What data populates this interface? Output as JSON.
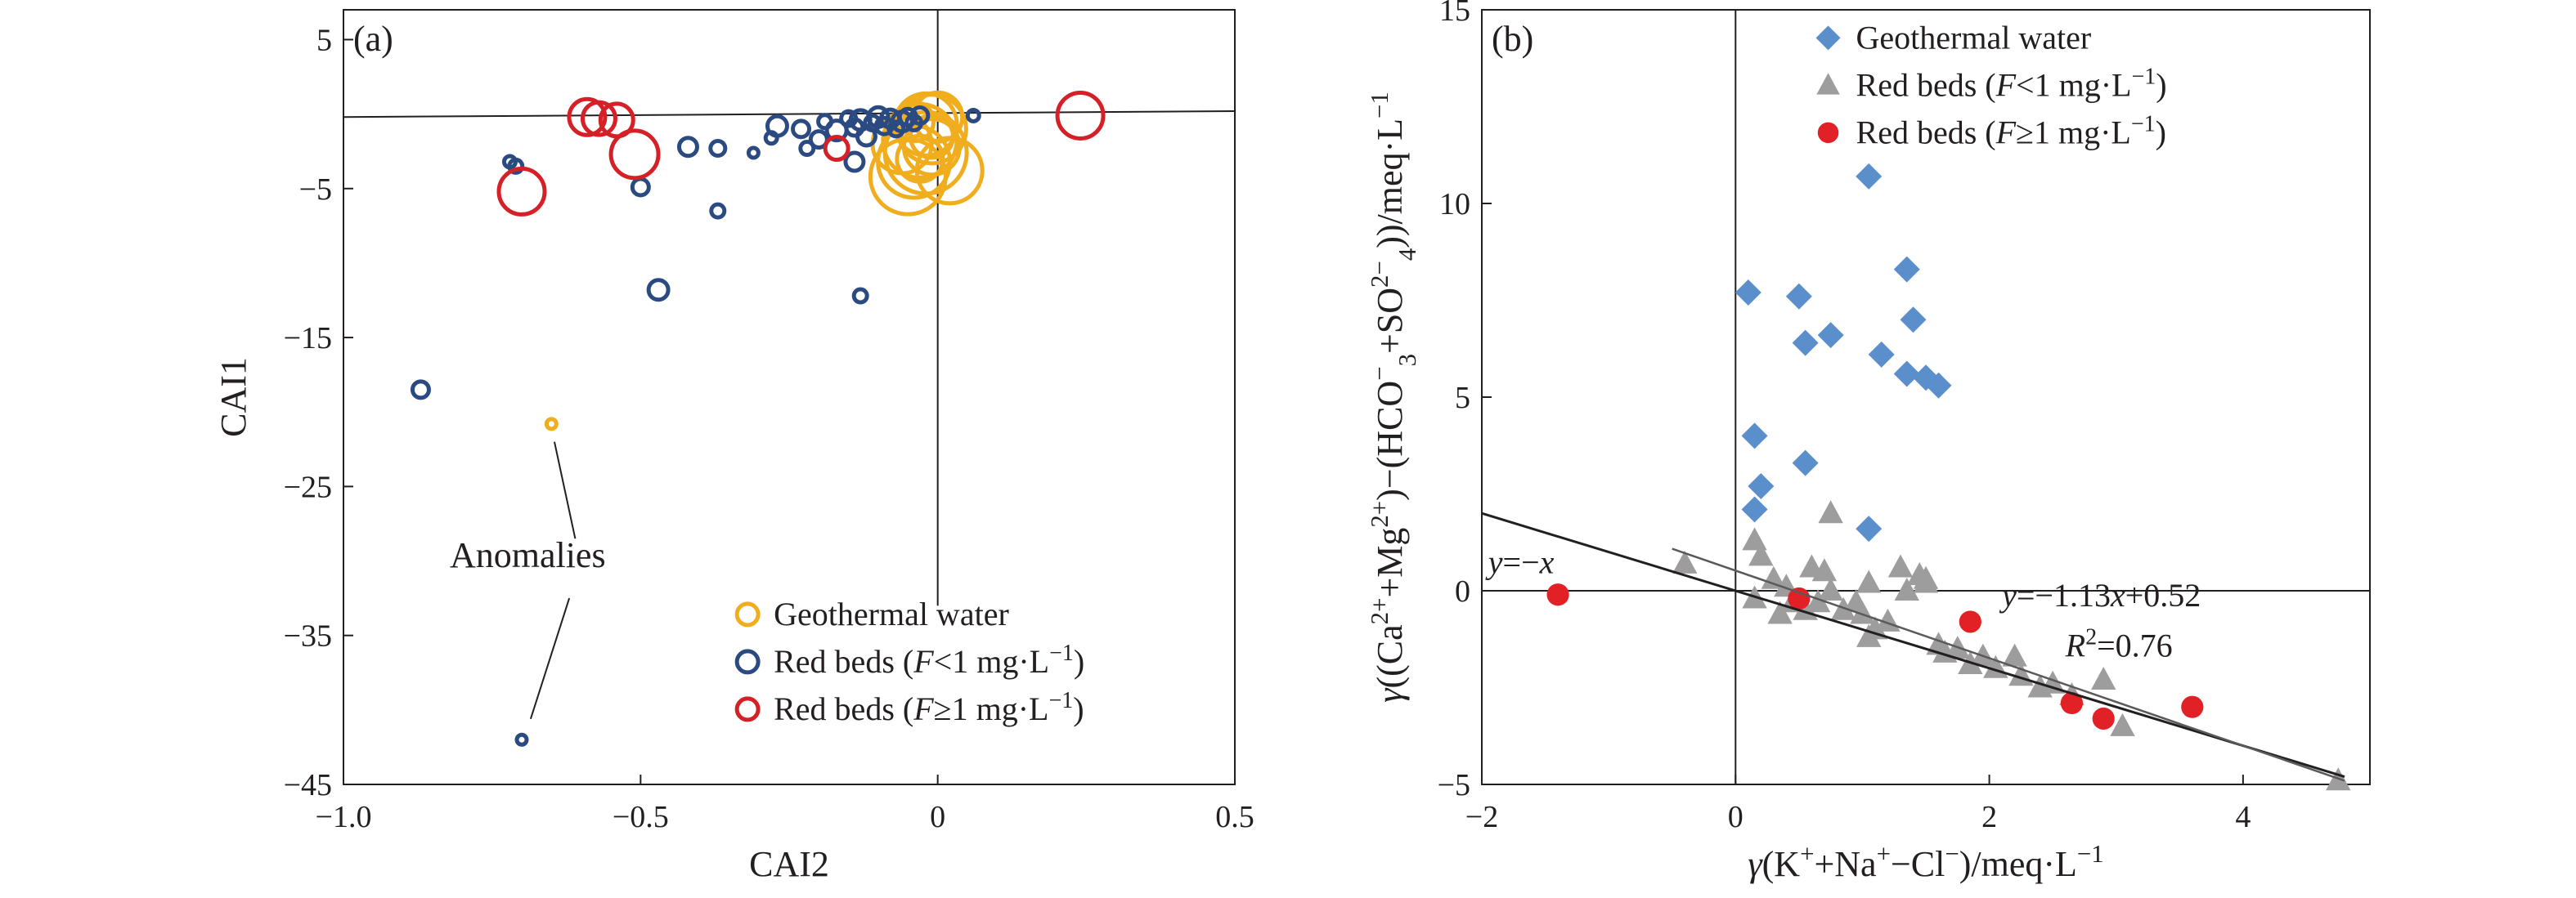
{
  "chart_data": [
    {
      "type": "scatter",
      "panel_label": "(a)",
      "xlabel": "CAI2",
      "ylabel": "CAI1",
      "xlim": [
        -1.0,
        0.5
      ],
      "ylim": [
        -45,
        7
      ],
      "xticks": [
        -1.0,
        -0.5,
        0,
        0.5
      ],
      "xtick_labels": [
        "−1.0",
        "−0.5",
        "0",
        "0.5"
      ],
      "yticks": [
        5,
        -5,
        -15,
        -25,
        -35,
        -45
      ],
      "ytick_labels": [
        "5",
        "−5",
        "−15",
        "−25",
        "−35",
        "−45"
      ],
      "grid": false,
      "legend_position": "bottom-right",
      "annotation": "Anomalies",
      "series": [
        {
          "name": "Geothermal water",
          "color": "#f0ad1e",
          "marker": "open-circle",
          "points": [
            [
              -0.65,
              -20.8,
              6
            ],
            [
              -0.01,
              -1.0,
              42
            ],
            [
              -0.03,
              -1.8,
              45
            ],
            [
              -0.02,
              -2.6,
              50
            ],
            [
              -0.04,
              -3.2,
              44
            ],
            [
              -0.05,
              -4.2,
              46
            ],
            [
              0.02,
              -3.8,
              40
            ],
            [
              -0.01,
              -2.2,
              34
            ],
            [
              -0.02,
              -0.7,
              38
            ],
            [
              0.0,
              -0.2,
              30
            ],
            [
              -0.03,
              -3.0,
              28
            ],
            [
              -0.06,
              -2.0,
              36
            ],
            [
              -0.01,
              -1.5,
              26
            ],
            [
              -0.04,
              -0.5,
              24
            ]
          ]
        },
        {
          "name": "Red beds (F<1 mg·L⁻¹)",
          "name_parts": [
            "Red beds (",
            "F",
            "<1 mg·L",
            "−1",
            ")"
          ],
          "color": "#2b4a82",
          "marker": "open-circle",
          "points": [
            [
              -0.87,
              -18.5,
              10
            ],
            [
              -0.7,
              -42.0,
              6
            ],
            [
              -0.72,
              -3.2,
              7
            ],
            [
              -0.71,
              -3.5,
              8
            ],
            [
              -0.5,
              -4.9,
              10
            ],
            [
              -0.47,
              -11.8,
              12
            ],
            [
              -0.42,
              -2.2,
              11
            ],
            [
              -0.37,
              -2.3,
              9
            ],
            [
              -0.37,
              -6.5,
              8
            ],
            [
              -0.31,
              -2.6,
              6
            ],
            [
              -0.28,
              -1.6,
              7
            ],
            [
              -0.27,
              -0.8,
              12
            ],
            [
              -0.23,
              -1.0,
              10
            ],
            [
              -0.22,
              -2.3,
              8
            ],
            [
              -0.2,
              -1.7,
              10
            ],
            [
              -0.19,
              -0.5,
              8
            ],
            [
              -0.17,
              -1.1,
              12
            ],
            [
              -0.15,
              -0.3,
              9
            ],
            [
              -0.14,
              -0.9,
              10
            ],
            [
              -0.13,
              -0.4,
              12
            ],
            [
              -0.12,
              -1.5,
              11
            ],
            [
              -0.11,
              -0.6,
              9
            ],
            [
              -0.1,
              -0.2,
              12
            ],
            [
              -0.09,
              -0.8,
              10
            ],
            [
              -0.08,
              -0.3,
              11
            ],
            [
              -0.07,
              -1.0,
              9
            ],
            [
              -0.06,
              -0.5,
              12
            ],
            [
              -0.05,
              -0.2,
              10
            ],
            [
              -0.04,
              -0.6,
              9
            ],
            [
              -0.03,
              -0.1,
              10
            ],
            [
              -0.13,
              -12.2,
              8
            ],
            [
              -0.14,
              -3.2,
              11
            ],
            [
              0.06,
              -0.1,
              7
            ]
          ]
        },
        {
          "name": "Red beds (F≥1 mg·L⁻¹)",
          "name_parts": [
            "Red beds (",
            "F",
            "≥1 mg·L",
            "−1",
            ")"
          ],
          "color": "#d62027",
          "marker": "open-circle",
          "points": [
            [
              -0.7,
              -5.2,
              28
            ],
            [
              -0.57,
              -0.3,
              20
            ],
            [
              -0.54,
              -0.4,
              20
            ],
            [
              -0.59,
              -0.2,
              22
            ],
            [
              -0.51,
              -2.7,
              29
            ],
            [
              -0.17,
              -2.3,
              14
            ],
            [
              0.24,
              -0.1,
              28
            ]
          ]
        }
      ],
      "reference_lines": [
        {
          "kind": "horizontal",
          "y_from": -0.2,
          "y_to": 0.2,
          "x": [
            -1.0,
            0.5
          ]
        },
        {
          "kind": "vertical",
          "x": 0,
          "y": [
            -33,
            7
          ]
        }
      ]
    },
    {
      "type": "scatter",
      "panel_label": "(b)",
      "xlabel_parts": [
        "γ",
        "(K",
        "+",
        "+Na",
        "+",
        "−Cl",
        "−",
        ")/meq·L",
        "−1"
      ],
      "ylabel_parts": [
        "γ",
        "((Ca",
        "2+",
        "+Mg",
        "2+",
        ")−(HCO",
        "−",
        "3",
        "+SO",
        "2−",
        "4",
        "))/meq·L",
        "−1"
      ],
      "xlim": [
        -2,
        5
      ],
      "ylim": [
        -5,
        15
      ],
      "xticks": [
        -2,
        0,
        2,
        4
      ],
      "xtick_labels": [
        "−2",
        "0",
        "2",
        "4"
      ],
      "yticks": [
        15,
        10,
        5,
        0,
        -5
      ],
      "ytick_labels": [
        "15",
        "10",
        "5",
        "0",
        "−5"
      ],
      "grid": false,
      "legend_position": "top-right",
      "lines": [
        {
          "label_parts": [
            "y",
            "=−",
            "x"
          ],
          "slope": -1,
          "intercept": 0,
          "x": [
            -2,
            4.8
          ]
        },
        {
          "label_parts": [
            "y",
            "=−1.13",
            "x",
            "+0.52"
          ],
          "r2_parts": [
            "R",
            "2",
            "=0.76"
          ],
          "slope": -1.13,
          "intercept": 0.52,
          "x": [
            -0.5,
            4.8
          ]
        }
      ],
      "series": [
        {
          "name": "Geothermal water",
          "color": "#5b8fcc",
          "marker": "diamond",
          "points": [
            [
              0.1,
              7.7
            ],
            [
              0.5,
              7.6
            ],
            [
              0.75,
              6.6
            ],
            [
              0.55,
              6.4
            ],
            [
              1.05,
              10.7
            ],
            [
              1.35,
              8.3
            ],
            [
              1.4,
              7.0
            ],
            [
              1.15,
              6.1
            ],
            [
              1.35,
              5.6
            ],
            [
              1.5,
              5.5
            ],
            [
              1.6,
              5.3
            ],
            [
              0.15,
              4.0
            ],
            [
              0.55,
              3.3
            ],
            [
              0.2,
              2.7
            ],
            [
              0.15,
              2.1
            ],
            [
              1.05,
              1.6
            ]
          ]
        },
        {
          "name": "Red beds (F<1 mg·L⁻¹)",
          "name_parts": [
            "Red beds (",
            "F",
            "<1 mg·L",
            "−1",
            ")"
          ],
          "color": "#9d9d9d",
          "marker": "triangle",
          "points": [
            [
              -0.4,
              0.7
            ],
            [
              0.15,
              1.3
            ],
            [
              0.2,
              0.9
            ],
            [
              0.3,
              0.3
            ],
            [
              0.15,
              -0.2
            ],
            [
              0.4,
              0.1
            ],
            [
              0.45,
              -0.3
            ],
            [
              0.55,
              -0.5
            ],
            [
              0.6,
              0.6
            ],
            [
              0.65,
              -0.3
            ],
            [
              0.75,
              2.0
            ],
            [
              0.7,
              0.5
            ],
            [
              0.75,
              0.0
            ],
            [
              0.85,
              -0.5
            ],
            [
              0.95,
              -0.3
            ],
            [
              1.0,
              -0.6
            ],
            [
              1.05,
              0.2
            ],
            [
              1.1,
              -1.0
            ],
            [
              1.2,
              -0.8
            ],
            [
              1.3,
              0.6
            ],
            [
              1.35,
              0.0
            ],
            [
              1.45,
              0.4
            ],
            [
              1.5,
              0.2
            ],
            [
              1.5,
              0.3
            ],
            [
              1.6,
              -1.4
            ],
            [
              1.65,
              -1.6
            ],
            [
              1.75,
              -1.5
            ],
            [
              1.85,
              -1.9
            ],
            [
              1.95,
              -1.7
            ],
            [
              2.05,
              -2.0
            ],
            [
              2.2,
              -1.7
            ],
            [
              2.25,
              -2.2
            ],
            [
              2.4,
              -2.5
            ],
            [
              2.5,
              -2.4
            ],
            [
              2.65,
              -2.7
            ],
            [
              2.9,
              -2.3
            ],
            [
              3.05,
              -3.5
            ],
            [
              4.75,
              -4.9
            ],
            [
              0.35,
              -0.6
            ],
            [
              1.05,
              -1.2
            ]
          ]
        },
        {
          "name": "Red beds (F≥1 mg·L⁻¹)",
          "name_parts": [
            "Red beds (",
            "F",
            "≥1 mg·L",
            "−1",
            ")"
          ],
          "color": "#e12126",
          "marker": "filled-circle",
          "points": [
            [
              -1.4,
              -0.1
            ],
            [
              0.5,
              -0.2
            ],
            [
              1.85,
              -0.8
            ],
            [
              2.65,
              -2.9
            ],
            [
              2.9,
              -3.3
            ],
            [
              3.6,
              -3.0
            ]
          ]
        }
      ]
    }
  ]
}
